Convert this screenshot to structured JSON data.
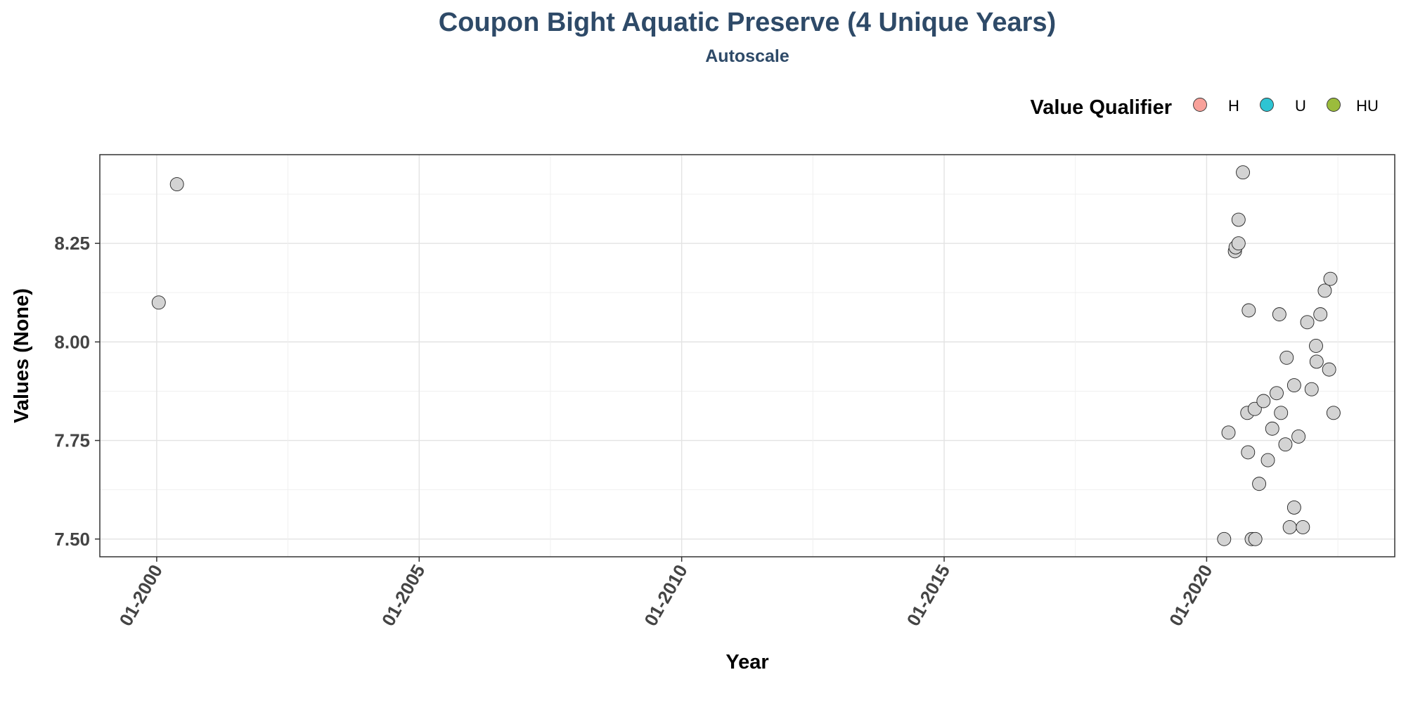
{
  "chart_data": {
    "type": "scatter",
    "title": "Coupon Bight Aquatic Preserve (4 Unique Years)",
    "subtitle": "Autoscale",
    "xlabel": "Year",
    "ylabel": "Values (None)",
    "x_ticks": [
      "01-2000",
      "01-2005",
      "01-2010",
      "01-2015",
      "01-2020"
    ],
    "y_ticks": [
      "7.50",
      "7.75",
      "8.00",
      "8.25"
    ],
    "xlim": [
      "1998-12-01",
      "2023-08-01"
    ],
    "ylim": [
      7.455,
      8.475
    ],
    "grid": true,
    "legend": {
      "title": "Value Qualifier",
      "placement": "top-right",
      "items": [
        {
          "label": "H",
          "color": "#f8a19a"
        },
        {
          "label": "U",
          "color": "#2ec4d3"
        },
        {
          "label": "HU",
          "color": "#9bbc3c"
        }
      ]
    },
    "point_color": "#d3d3d3",
    "series": [
      {
        "points": [
          {
            "x": "2000-01-15",
            "y": 8.1
          },
          {
            "x": "2000-05-20",
            "y": 8.4
          },
          {
            "x": "2020-05-01",
            "y": 7.5
          },
          {
            "x": "2020-06-01",
            "y": 7.77
          },
          {
            "x": "2020-07-15",
            "y": 8.23
          },
          {
            "x": "2020-07-20",
            "y": 8.24
          },
          {
            "x": "2020-08-10",
            "y": 8.31
          },
          {
            "x": "2020-08-10",
            "y": 8.25
          },
          {
            "x": "2020-09-10",
            "y": 8.43
          },
          {
            "x": "2020-10-10",
            "y": 7.82
          },
          {
            "x": "2020-10-15",
            "y": 7.72
          },
          {
            "x": "2020-10-20",
            "y": 8.08
          },
          {
            "x": "2020-11-10",
            "y": 7.5
          },
          {
            "x": "2020-12-01",
            "y": 7.83
          },
          {
            "x": "2020-12-05",
            "y": 7.5
          },
          {
            "x": "2021-01-01",
            "y": 7.64
          },
          {
            "x": "2021-02-01",
            "y": 7.85
          },
          {
            "x": "2021-03-01",
            "y": 7.7
          },
          {
            "x": "2021-04-01",
            "y": 7.78
          },
          {
            "x": "2021-05-01",
            "y": 7.87
          },
          {
            "x": "2021-05-20",
            "y": 8.07
          },
          {
            "x": "2021-06-01",
            "y": 7.82
          },
          {
            "x": "2021-07-01",
            "y": 7.74
          },
          {
            "x": "2021-07-10",
            "y": 7.96
          },
          {
            "x": "2021-08-01",
            "y": 7.53
          },
          {
            "x": "2021-09-01",
            "y": 7.89
          },
          {
            "x": "2021-09-01",
            "y": 7.58
          },
          {
            "x": "2021-10-01",
            "y": 7.76
          },
          {
            "x": "2021-11-01",
            "y": 7.53
          },
          {
            "x": "2021-12-01",
            "y": 8.05
          },
          {
            "x": "2022-01-01",
            "y": 7.88
          },
          {
            "x": "2022-02-01",
            "y": 7.99
          },
          {
            "x": "2022-02-05",
            "y": 7.95
          },
          {
            "x": "2022-03-01",
            "y": 8.07
          },
          {
            "x": "2022-04-01",
            "y": 8.13
          },
          {
            "x": "2022-05-01",
            "y": 7.93
          },
          {
            "x": "2022-05-10",
            "y": 8.16
          },
          {
            "x": "2022-06-01",
            "y": 7.82
          }
        ]
      }
    ]
  }
}
